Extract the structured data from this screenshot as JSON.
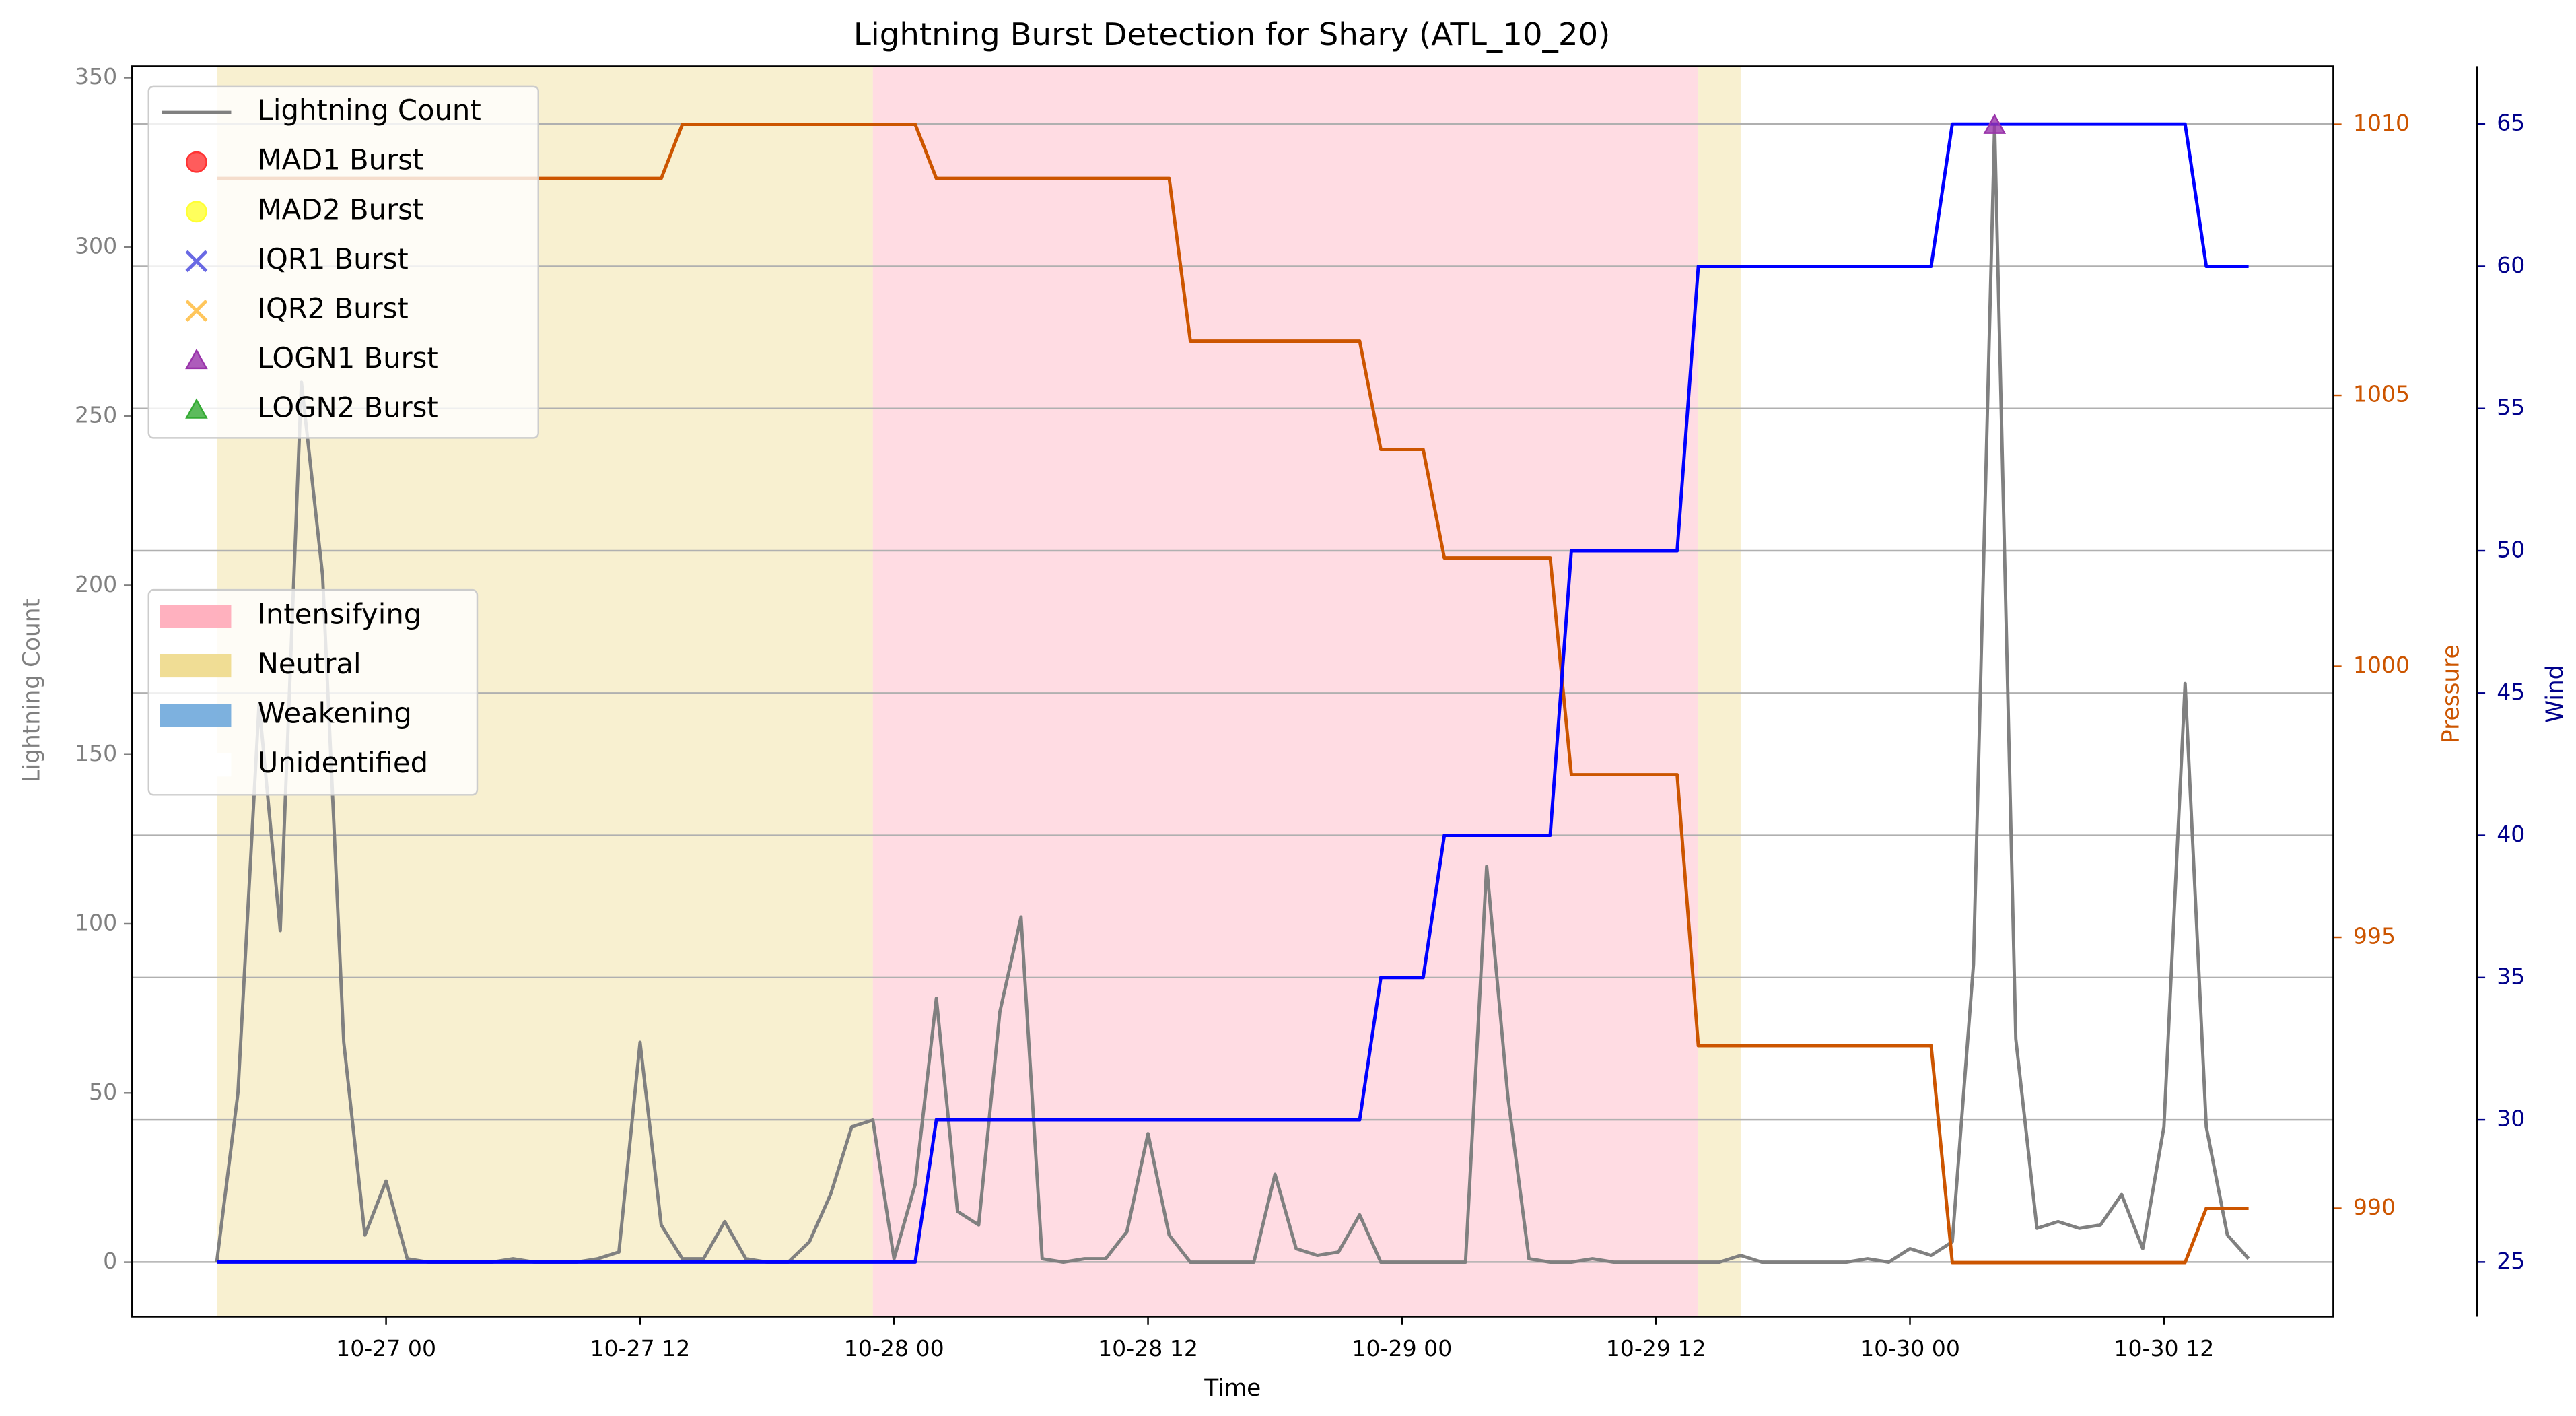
{
  "chart_data": {
    "type": "line",
    "title": "Lightning Burst Detection for Shary (ATL_10_20)",
    "xlabel": "Time",
    "ylabel": "Lightning Count",
    "y2label": "Pressure",
    "y3label": "Wind",
    "y2color": "#cc5500",
    "y3color": "#00008b",
    "ylabelcolor": "#808080",
    "x": [
      "10-26 16",
      "10-26 17",
      "10-26 18",
      "10-26 19",
      "10-26 20",
      "10-26 21",
      "10-26 22",
      "10-26 23",
      "10-27 00",
      "10-27 01",
      "10-27 02",
      "10-27 03",
      "10-27 04",
      "10-27 05",
      "10-27 06",
      "10-27 07",
      "10-27 08",
      "10-27 09",
      "10-27 10",
      "10-27 11",
      "10-27 12",
      "10-27 13",
      "10-27 14",
      "10-27 15",
      "10-27 16",
      "10-27 17",
      "10-27 18",
      "10-27 19",
      "10-27 20",
      "10-27 21",
      "10-27 22",
      "10-27 23",
      "10-28 00",
      "10-28 01",
      "10-28 02",
      "10-28 03",
      "10-28 04",
      "10-28 05",
      "10-28 06",
      "10-28 07",
      "10-28 08",
      "10-28 09",
      "10-28 10",
      "10-28 11",
      "10-28 12",
      "10-28 13",
      "10-28 14",
      "10-28 15",
      "10-28 16",
      "10-28 17",
      "10-28 18",
      "10-28 19",
      "10-28 20",
      "10-28 21",
      "10-28 22",
      "10-28 23",
      "10-29 00",
      "10-29 01",
      "10-29 02",
      "10-29 03",
      "10-29 04",
      "10-29 05",
      "10-29 06",
      "10-29 07",
      "10-29 08",
      "10-29 09",
      "10-29 10",
      "10-29 11",
      "10-29 12",
      "10-29 13",
      "10-29 14",
      "10-29 15",
      "10-29 16",
      "10-29 17",
      "10-29 18",
      "10-29 19",
      "10-29 20",
      "10-29 21",
      "10-29 22",
      "10-29 23",
      "10-30 00",
      "10-30 01",
      "10-30 02",
      "10-30 03",
      "10-30 04",
      "10-30 05",
      "10-30 06",
      "10-30 07",
      "10-30 08",
      "10-30 09",
      "10-30 10",
      "10-30 11",
      "10-30 12",
      "10-30 13",
      "10-30 14",
      "10-30 15",
      "10-30 16"
    ],
    "series": [
      {
        "name": "Lightning Count",
        "color": "#808080",
        "values": [
          0,
          50,
          165,
          98,
          260,
          203,
          65,
          8,
          24,
          1,
          0,
          0,
          0,
          0,
          1,
          0,
          0,
          0,
          1,
          3,
          65,
          11,
          1,
          1,
          12,
          1,
          0,
          0,
          6,
          20,
          40,
          42,
          1,
          23,
          78,
          15,
          11,
          74,
          102,
          1,
          0,
          1,
          1,
          9,
          38,
          8,
          0,
          0,
          0,
          0,
          26,
          4,
          2,
          3,
          14,
          0,
          0,
          0,
          0,
          0,
          117,
          49,
          1,
          0,
          0,
          1,
          0,
          0,
          0,
          0,
          0,
          0,
          2,
          0,
          0,
          0,
          0,
          0,
          1,
          0,
          4,
          2,
          6,
          88,
          336,
          66,
          10,
          12,
          10,
          11,
          20,
          4,
          40,
          171,
          40,
          8,
          1
        ]
      },
      {
        "color": "#cc5500",
        "axis": "y2",
        "values": [
          1009,
          1009,
          1009,
          1009,
          1009,
          1009,
          1009,
          1009,
          1009,
          1009,
          1009,
          1009,
          1009,
          1009,
          1009,
          1009,
          1009,
          1009,
          1009,
          1009,
          1009,
          1009,
          1010,
          1010,
          1010,
          1010,
          1010,
          1010,
          1010,
          1010,
          1010,
          1010,
          1010,
          1010,
          1009,
          1009,
          1009,
          1009,
          1009,
          1009,
          1009,
          1009,
          1009,
          1009,
          1009,
          1009,
          1006,
          1006,
          1006,
          1006,
          1006,
          1006,
          1006,
          1006,
          1006,
          1004,
          1004,
          1004,
          1002,
          1002,
          1002,
          1002,
          1002,
          1002,
          998,
          998,
          998,
          998,
          998,
          998,
          993,
          993,
          993,
          993,
          993,
          993,
          993,
          993,
          993,
          993,
          993,
          993,
          989,
          989,
          989,
          989,
          989,
          989,
          989,
          989,
          989,
          989,
          989,
          989,
          990,
          990,
          990
        ]
      },
      {
        "color": "#0000ff",
        "axis": "y3",
        "values": [
          25,
          25,
          25,
          25,
          25,
          25,
          25,
          25,
          25,
          25,
          25,
          25,
          25,
          25,
          25,
          25,
          25,
          25,
          25,
          25,
          25,
          25,
          25,
          25,
          25,
          25,
          25,
          25,
          25,
          25,
          25,
          25,
          25,
          25,
          30,
          30,
          30,
          30,
          30,
          30,
          30,
          30,
          30,
          30,
          30,
          30,
          30,
          30,
          30,
          30,
          30,
          30,
          30,
          30,
          30,
          35,
          35,
          35,
          40,
          40,
          40,
          40,
          40,
          40,
          50,
          50,
          50,
          50,
          50,
          50,
          60,
          60,
          60,
          60,
          60,
          60,
          60,
          60,
          60,
          60,
          60,
          60,
          65,
          65,
          65,
          65,
          65,
          65,
          65,
          65,
          65,
          65,
          65,
          65,
          60,
          60,
          60
        ]
      }
    ],
    "bursts": [
      {
        "name": "MAD1 Burst",
        "color": "#ff3333",
        "marker": "circle",
        "x": [],
        "values": []
      },
      {
        "name": "MAD2 Burst",
        "color": "#ffff33",
        "marker": "circle",
        "x": [],
        "values": []
      },
      {
        "name": "IQR1 Burst",
        "color": "#4444dd",
        "marker": "x",
        "x": [],
        "values": []
      },
      {
        "name": "IQR2 Burst",
        "color": "#ffb833",
        "marker": "x",
        "x": [],
        "values": []
      },
      {
        "name": "LOGN1 Burst",
        "color": "#9933aa",
        "marker": "triangle",
        "x": [
          "10-30 04"
        ],
        "values": [
          336
        ]
      },
      {
        "name": "LOGN2 Burst",
        "color": "#33aa33",
        "marker": "triangle",
        "x": [],
        "values": []
      }
    ],
    "region_legend": [
      {
        "label": "Intensifying",
        "color": "#ffa8b8"
      },
      {
        "label": "Neutral",
        "color": "#eed98a"
      },
      {
        "label": "Weakening",
        "color": "#6fa8dc"
      },
      {
        "label": "Unidentified",
        "color": "#ffffff"
      }
    ],
    "regions": [
      {
        "state": "Neutral",
        "start": "10-26 16",
        "end": "10-27 23"
      },
      {
        "state": "Intensifying",
        "start": "10-27 23",
        "end": "10-29 14"
      },
      {
        "state": "Neutral",
        "start": "10-29 14",
        "end": "10-29 16"
      }
    ],
    "xlim": [
      "10-26 12",
      "10-30 20"
    ],
    "xticks": [
      "10-27 00",
      "10-27 12",
      "10-28 00",
      "10-28 12",
      "10-29 00",
      "10-29 12",
      "10-30 00",
      "10-30 12"
    ],
    "ylim": [
      -16.1,
      353.4
    ],
    "yticks": [
      0,
      50,
      100,
      150,
      200,
      250,
      300,
      350
    ],
    "y2lim": [
      988,
      1011.07
    ],
    "y2ticks": [
      990,
      995,
      1000,
      1005,
      1010
    ],
    "y3lim": [
      23.08,
      67.03
    ],
    "y3ticks": [
      25,
      30,
      35,
      40,
      45,
      50,
      55,
      60,
      65
    ],
    "grid_axis": "y3"
  }
}
